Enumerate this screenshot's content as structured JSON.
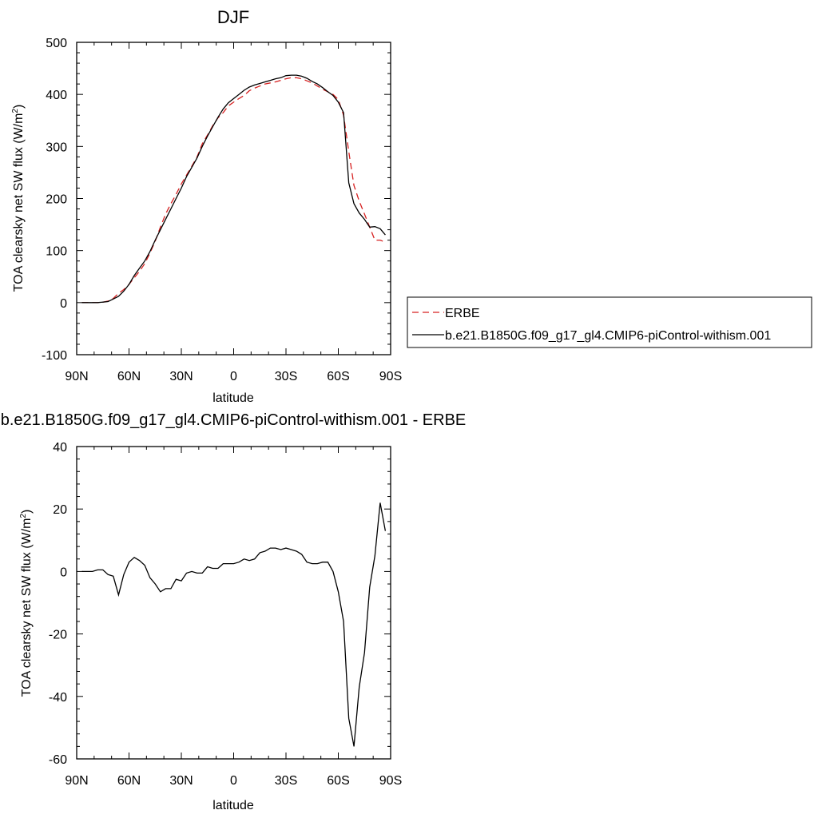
{
  "chart_data": [
    {
      "type": "line",
      "title": "DJF",
      "xlabel": "latitude",
      "ylabel": "TOA clearsky net SW flux (W/m",
      "ylabel_sup": "2",
      "ylabel_close": ")",
      "xlim": [
        90,
        -90
      ],
      "ylim": [
        -100,
        500
      ],
      "xticks": [
        90,
        60,
        30,
        0,
        -30,
        -60,
        -90
      ],
      "xtick_labels": [
        "90N",
        "60N",
        "30N",
        "0",
        "30S",
        "60S",
        "90S"
      ],
      "yticks": [
        -100,
        0,
        100,
        200,
        300,
        400,
        500
      ],
      "ytick_labels": [
        "-100",
        "0",
        "100",
        "200",
        "300",
        "400",
        "500"
      ],
      "legend": "right",
      "series": [
        {
          "name": "ERBE",
          "color": "#d62020",
          "dash": "dashed",
          "x": [
            87,
            84,
            81,
            78,
            75,
            72,
            69,
            66,
            63,
            60,
            57,
            54,
            51,
            48,
            45,
            42,
            39,
            36,
            33,
            30,
            27,
            24,
            21,
            18,
            15,
            12,
            9,
            6,
            3,
            0,
            -3,
            -6,
            -9,
            -12,
            -15,
            -18,
            -21,
            -24,
            -27,
            -30,
            -33,
            -36,
            -39,
            -42,
            -45,
            -48,
            -51,
            -54,
            -57,
            -60,
            -63,
            -66,
            -69,
            -72,
            -75,
            -78,
            -81,
            -84,
            -87
          ],
          "values": [
            0,
            0,
            0,
            0,
            1,
            3,
            8,
            18,
            25,
            35,
            48,
            60,
            75,
            95,
            118,
            145,
            170,
            190,
            208,
            228,
            245,
            262,
            280,
            305,
            322,
            340,
            355,
            365,
            378,
            385,
            392,
            398,
            407,
            412,
            416,
            420,
            422,
            424,
            427,
            430,
            432,
            432,
            430,
            426,
            422,
            416,
            410,
            405,
            400,
            390,
            360,
            290,
            225,
            195,
            170,
            145,
            120,
            120,
            116
          ]
        },
        {
          "name": "b.e21.B1850G.f09_g17_gl4.CMIP6-piControl-withism.001",
          "color": "#000000",
          "dash": "solid",
          "x": [
            87,
            84,
            81,
            78,
            75,
            72,
            69,
            66,
            63,
            60,
            57,
            54,
            51,
            48,
            45,
            42,
            39,
            36,
            33,
            30,
            27,
            24,
            21,
            18,
            15,
            12,
            9,
            6,
            3,
            0,
            -3,
            -6,
            -9,
            -12,
            -15,
            -18,
            -21,
            -24,
            -27,
            -30,
            -33,
            -36,
            -39,
            -42,
            -45,
            -48,
            -51,
            -54,
            -57,
            -60,
            -63,
            -66,
            -69,
            -72,
            -75,
            -78,
            -81,
            -84,
            -87
          ],
          "values": [
            0,
            0,
            0,
            0,
            1,
            2,
            7,
            12,
            22,
            35,
            52,
            66,
            80,
            98,
            120,
            140,
            160,
            180,
            200,
            220,
            242,
            260,
            278,
            300,
            320,
            338,
            356,
            372,
            384,
            392,
            400,
            408,
            414,
            418,
            421,
            424,
            427,
            430,
            432,
            436,
            437,
            437,
            435,
            431,
            425,
            420,
            413,
            405,
            398,
            385,
            365,
            230,
            190,
            172,
            160,
            145,
            146,
            142,
            130
          ]
        }
      ]
    },
    {
      "type": "line",
      "title": "b.e21.B1850G.f09_g17_gl4.CMIP6-piControl-withism.001 - ERBE",
      "xlabel": "latitude",
      "ylabel": "TOA clearsky net SW flux (W/m",
      "ylabel_sup": "2",
      "ylabel_close": ")",
      "xlim": [
        90,
        -90
      ],
      "ylim": [
        -60,
        40
      ],
      "xticks": [
        90,
        60,
        30,
        0,
        -30,
        -60,
        -90
      ],
      "xtick_labels": [
        "90N",
        "60N",
        "30N",
        "0",
        "30S",
        "60S",
        "90S"
      ],
      "yticks": [
        -60,
        -40,
        -20,
        0,
        20,
        40
      ],
      "ytick_labels": [
        "-60",
        "-40",
        "-20",
        "0",
        "20",
        "40"
      ],
      "series": [
        {
          "color": "#000000",
          "dash": "solid",
          "x": [
            87,
            84,
            81,
            78,
            75,
            72,
            69,
            66,
            63,
            60,
            57,
            54,
            51,
            48,
            45,
            42,
            39,
            36,
            33,
            30,
            27,
            24,
            21,
            18,
            15,
            12,
            9,
            6,
            3,
            0,
            -3,
            -6,
            -9,
            -12,
            -15,
            -18,
            -21,
            -24,
            -27,
            -30,
            -33,
            -36,
            -39,
            -42,
            -45,
            -48,
            -51,
            -54,
            -57,
            -60,
            -63,
            -66,
            -69,
            -72,
            -75,
            -78,
            -81,
            -84,
            -87
          ],
          "values": [
            0,
            0,
            0,
            0.5,
            0.5,
            -1,
            -1.5,
            -7.5,
            -1,
            3,
            4.5,
            3.5,
            2,
            -2,
            -4,
            -6.5,
            -5.5,
            -5.5,
            -2.5,
            -3,
            -0.5,
            0,
            -0.5,
            -0.5,
            1.5,
            1,
            1,
            2.5,
            2.5,
            2.5,
            3,
            4,
            3.5,
            4,
            6,
            6.5,
            7.5,
            7.5,
            7,
            7.5,
            7,
            6.5,
            5.5,
            3,
            2.5,
            2.5,
            3,
            3,
            0,
            -6.5,
            -16,
            -47,
            -56,
            -37,
            -26,
            -5,
            5,
            22,
            13
          ]
        }
      ]
    }
  ]
}
